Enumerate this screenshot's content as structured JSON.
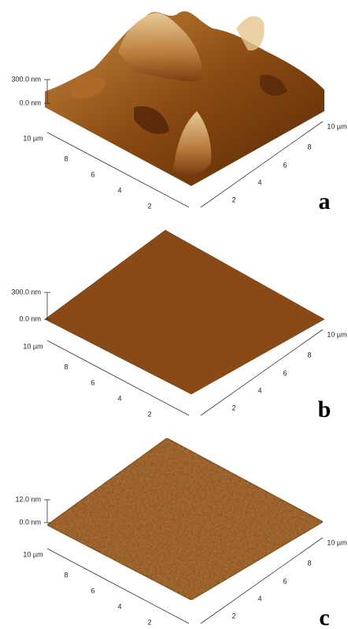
{
  "panels": [
    {
      "label": "a",
      "z_axis": [
        "300.0 nm",
        "0.0 nm"
      ],
      "left_axis": [
        "10 µm",
        "8",
        "6",
        "4",
        "2"
      ],
      "right_axis": [
        "2",
        "4",
        "6",
        "8",
        "10 µm"
      ]
    },
    {
      "label": "b",
      "z_axis": [
        "300.0 nm",
        "0.0 nm"
      ],
      "left_axis": [
        "10 µm",
        "8",
        "6",
        "4",
        "2"
      ],
      "right_axis": [
        "2",
        "4",
        "6",
        "8",
        "10 µm"
      ]
    },
    {
      "label": "c",
      "z_axis": [
        "12.0 nm",
        "0.0 nm"
      ],
      "left_axis": [
        "10 µm",
        "8",
        "6",
        "4",
        "2"
      ],
      "right_axis": [
        "2",
        "4",
        "6",
        "8",
        "10 µm"
      ]
    }
  ]
}
